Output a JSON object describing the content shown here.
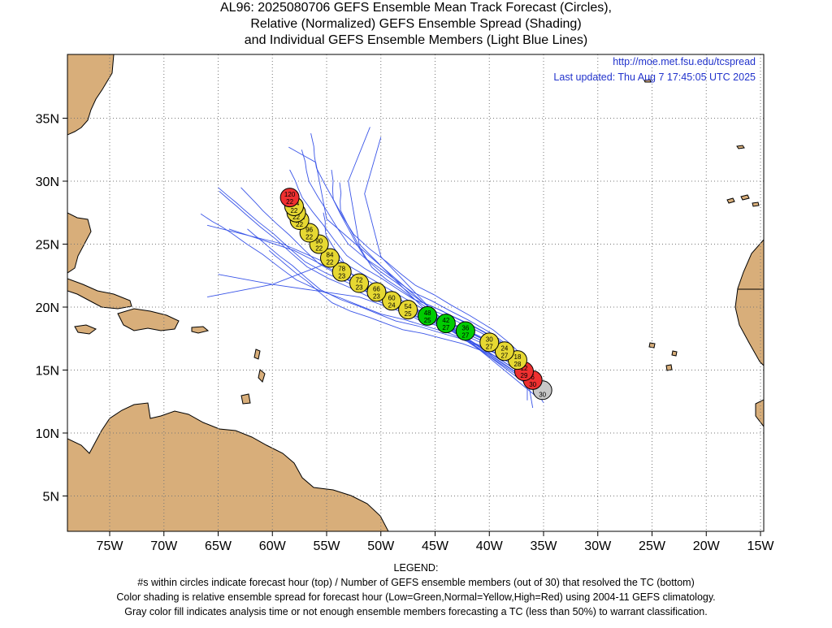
{
  "title": {
    "line1": "AL96: 2025080706 GEFS Ensemble Mean Track Forecast (Circles),",
    "line2": "Relative (Normalized) GEFS Ensemble Spread (Shading)",
    "line3": "and Individual GEFS Ensemble Members (Light Blue Lines)"
  },
  "source": {
    "url": "http://moe.met.fsu.edu/tcspread",
    "updated": "Last updated: Thu Aug 7 17:45:05 UTC 2025"
  },
  "axes": {
    "lon_labels": [
      "75W",
      "70W",
      "65W",
      "60W",
      "55W",
      "50W",
      "45W",
      "40W",
      "35W",
      "30W",
      "25W",
      "20W",
      "15W"
    ],
    "lon_values": [
      -75,
      -70,
      -65,
      -60,
      -55,
      -50,
      -45,
      -40,
      -35,
      -30,
      -25,
      -20,
      -15
    ],
    "lat_labels": [
      "5N",
      "10N",
      "15N",
      "20N",
      "25N",
      "30N",
      "35N"
    ],
    "lat_values": [
      5,
      10,
      15,
      20,
      25,
      30,
      35
    ],
    "lon_range": [
      -79,
      -15
    ],
    "lat_range": [
      2.5,
      40
    ]
  },
  "colors": {
    "land": "#d8ae7a",
    "coast": "#000000",
    "member_line": "#3a55e8",
    "low": "#00cc00",
    "normal": "#e6d832",
    "high": "#ee3030",
    "analysis": "#c8c8c8",
    "grid": "#777777",
    "link": "#2233cc"
  },
  "track": [
    {
      "hour": "120",
      "members": "22",
      "lon": -58.4,
      "lat": 28.7,
      "spread": "high"
    },
    {
      "hour": "114",
      "members": "22",
      "lon": -58.0,
      "lat": 28.0,
      "spread": "normal"
    },
    {
      "hour": "108",
      "members": "22",
      "lon": -57.8,
      "lat": 27.5,
      "spread": "normal"
    },
    {
      "hour": "102",
      "members": "22",
      "lon": -57.5,
      "lat": 26.9,
      "spread": "normal"
    },
    {
      "hour": "96",
      "members": "22",
      "lon": -56.6,
      "lat": 25.9,
      "spread": "normal"
    },
    {
      "hour": "90",
      "members": "22",
      "lon": -55.7,
      "lat": 25.0,
      "spread": "normal"
    },
    {
      "hour": "84",
      "members": "22",
      "lon": -54.7,
      "lat": 23.9,
      "spread": "normal"
    },
    {
      "hour": "78",
      "members": "23",
      "lon": -53.6,
      "lat": 22.8,
      "spread": "normal"
    },
    {
      "hour": "72",
      "members": "23",
      "lon": -52.0,
      "lat": 21.9,
      "spread": "normal"
    },
    {
      "hour": "66",
      "members": "23",
      "lon": -50.4,
      "lat": 21.2,
      "spread": "normal"
    },
    {
      "hour": "60",
      "members": "24",
      "lon": -49.0,
      "lat": 20.5,
      "spread": "normal"
    },
    {
      "hour": "54",
      "members": "25",
      "lon": -47.5,
      "lat": 19.8,
      "spread": "normal"
    },
    {
      "hour": "48",
      "members": "25",
      "lon": -45.7,
      "lat": 19.3,
      "spread": "low"
    },
    {
      "hour": "42",
      "members": "27",
      "lon": -44.0,
      "lat": 18.7,
      "spread": "low"
    },
    {
      "hour": "36",
      "members": "27",
      "lon": -42.2,
      "lat": 18.1,
      "spread": "low"
    },
    {
      "hour": "30",
      "members": "27",
      "lon": -40.0,
      "lat": 17.2,
      "spread": "normal"
    },
    {
      "hour": "24",
      "members": "27",
      "lon": -38.6,
      "lat": 16.5,
      "spread": "normal"
    },
    {
      "hour": "18",
      "members": "28",
      "lon": -37.4,
      "lat": 15.8,
      "spread": "normal"
    },
    {
      "hour": "12",
      "members": "29",
      "lon": -36.8,
      "lat": 14.9,
      "spread": "high"
    },
    {
      "hour": "6",
      "members": "30",
      "lon": -36.0,
      "lat": 14.2,
      "spread": "high"
    },
    {
      "hour": "",
      "members": "30",
      "lon": -35.1,
      "lat": 13.4,
      "spread": "analysis"
    }
  ],
  "legend": {
    "heading": "LEGEND:",
    "line1": "#s within circles indicate forecast hour (top) / Number of GEFS ensemble members (out of 30) that resolved the TC (bottom)",
    "line2": "Color shading is relative ensemble spread for forecast hour (Low=Green,Normal=Yellow,High=Red) using 2004-11 GEFS climatology.",
    "line3": "Gray color fill indicates analysis time or not enough ensemble members forecasting a TC (less than 50%) to warrant classification."
  }
}
